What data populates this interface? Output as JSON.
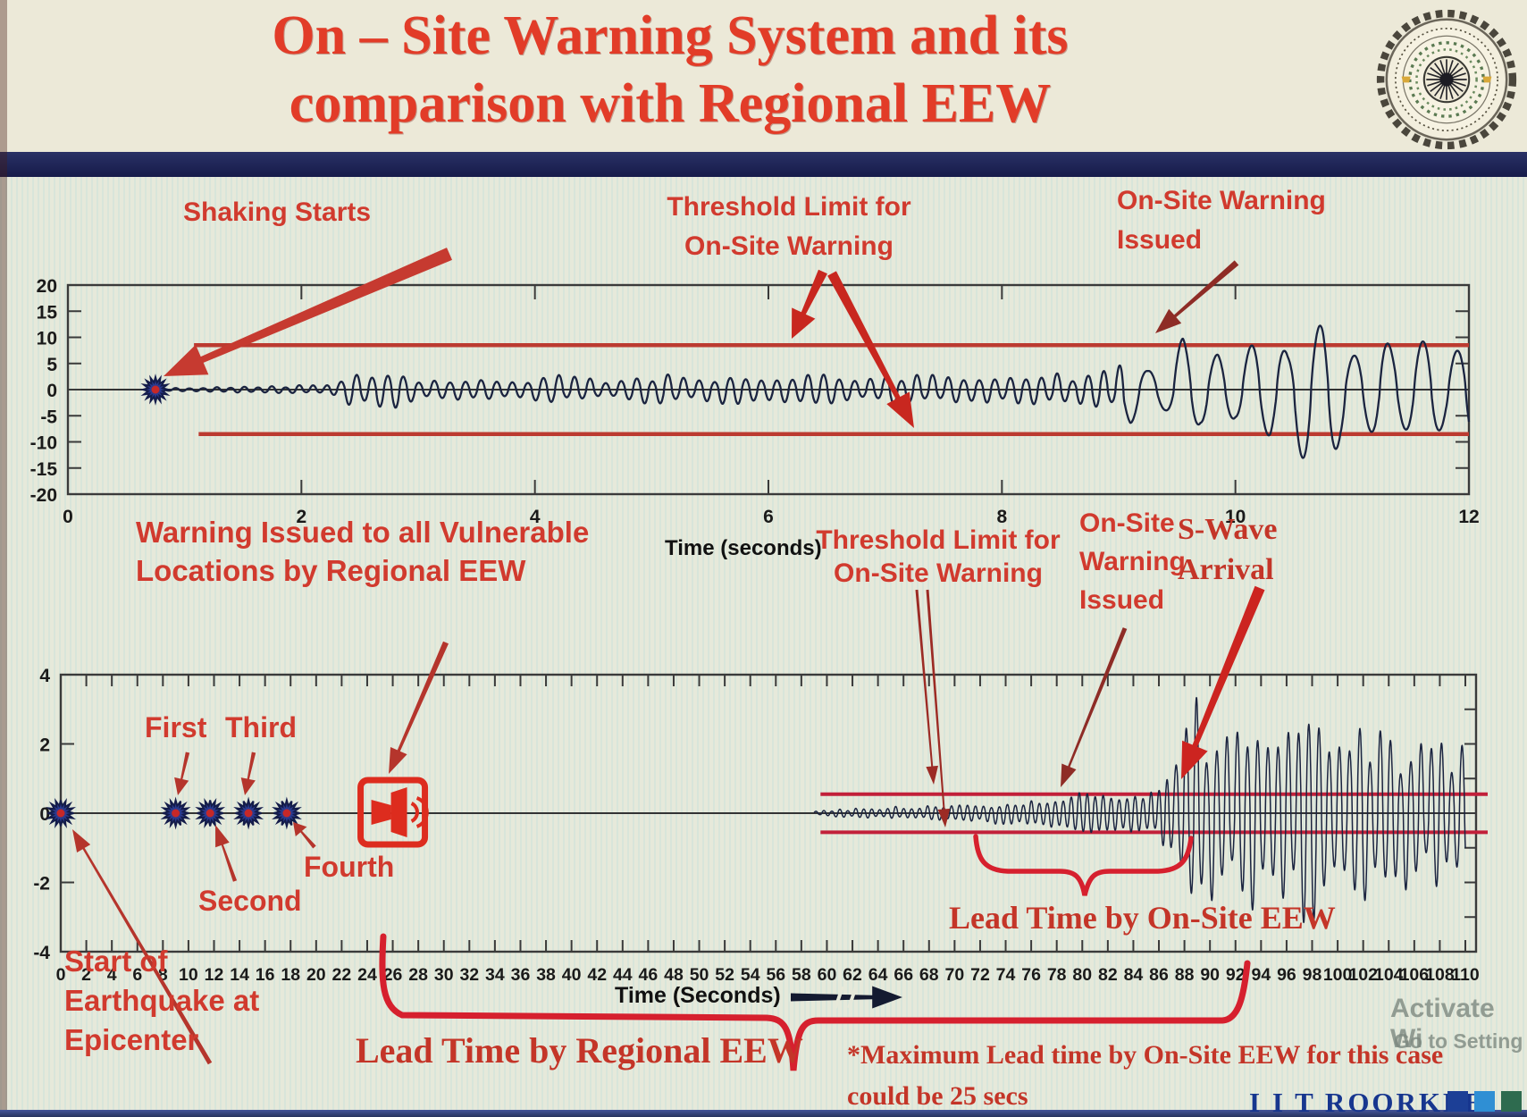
{
  "slide": {
    "title_line1": "On – Site Warning System and its",
    "title_line2": "comparison with Regional EEW",
    "footer_brand": "I I T ROORKEE",
    "watermark_line1": "Activate Wi",
    "watermark_line2": "Go to Setting",
    "logo_name": "IIT Roorkee emblem"
  },
  "colors": {
    "title_red": "#e23c28",
    "annotation_red": "#d13a2e",
    "arrow_bright_red": "#c8271f",
    "arrow_dark_red": "#8e2c26",
    "threshold_red": "#bc3a30",
    "bottom_threshold_red": "#c2203a",
    "waveform_navy": "#1b2440",
    "star_blue": "#2a3a8f",
    "star_center_red": "#c62828",
    "alarm_red": "#dd2c1e",
    "bracket_red": "#d6202e",
    "navy_bar": "#1d2256",
    "footer_navy": "#17368f",
    "footer_sq1": "#1c3f96",
    "footer_sq2": "#2f8fd4",
    "footer_sq3": "#2e6b4f"
  },
  "chart_data": [
    {
      "type": "line",
      "id": "onsite-warning-seismogram",
      "xlabel": "Time (seconds)",
      "xlim": [
        0,
        12
      ],
      "ylim": [
        -20,
        20
      ],
      "xticks": [
        0,
        2,
        4,
        6,
        8,
        10,
        12
      ],
      "yticks": [
        20,
        15,
        10,
        5,
        0,
        -5,
        -10,
        -15,
        -20
      ],
      "grid": false,
      "legend": "none",
      "threshold_upper": 8.5,
      "threshold_lower": -8.5,
      "threshold_start_t": 1.1,
      "shaking_start_marker_t": 0.75,
      "first_threshold_crossing_t": 9.1,
      "envelope": [
        [
          0.78,
          0.25
        ],
        [
          1.1,
          0.4
        ],
        [
          1.5,
          0.6
        ],
        [
          1.9,
          0.85
        ],
        [
          2.2,
          1.1
        ],
        [
          2.4,
          3.2
        ],
        [
          2.55,
          4.2
        ],
        [
          2.7,
          3.4
        ],
        [
          2.85,
          4.0
        ],
        [
          3.0,
          2.6
        ],
        [
          3.2,
          2.0
        ],
        [
          3.4,
          2.5
        ],
        [
          3.6,
          1.9
        ],
        [
          3.9,
          2.3
        ],
        [
          4.2,
          2.9
        ],
        [
          4.5,
          2.1
        ],
        [
          4.8,
          2.5
        ],
        [
          5.1,
          3.1
        ],
        [
          5.4,
          2.3
        ],
        [
          5.7,
          2.9
        ],
        [
          6.0,
          2.5
        ],
        [
          6.3,
          3.1
        ],
        [
          6.6,
          2.7
        ],
        [
          6.9,
          2.4
        ],
        [
          7.2,
          3.2
        ],
        [
          7.5,
          2.7
        ],
        [
          7.8,
          3.1
        ],
        [
          8.1,
          2.7
        ],
        [
          8.4,
          3.4
        ],
        [
          8.7,
          3.1
        ],
        [
          8.95,
          4.0
        ],
        [
          9.1,
          8.6
        ],
        [
          9.25,
          6.0
        ],
        [
          9.4,
          7.5
        ],
        [
          9.55,
          11.5
        ],
        [
          9.7,
          7.5
        ],
        [
          9.85,
          10.5
        ],
        [
          10.0,
          8.5
        ],
        [
          10.15,
          13.0
        ],
        [
          10.3,
          17.5
        ],
        [
          10.45,
          11.0
        ],
        [
          10.6,
          13.5
        ],
        [
          10.75,
          16.0
        ],
        [
          10.9,
          10.0
        ],
        [
          11.05,
          11.5
        ],
        [
          11.2,
          14.5
        ],
        [
          11.35,
          10.0
        ],
        [
          11.5,
          12.5
        ],
        [
          11.65,
          13.5
        ],
        [
          11.8,
          9.5
        ],
        [
          12.0,
          11.5
        ]
      ],
      "freq_cycles_per_unit": [
        [
          0,
          2.3,
          8.5
        ],
        [
          2.3,
          9.05,
          7.5
        ],
        [
          9.05,
          12,
          3.4
        ]
      ],
      "annotations": {
        "shaking_starts": "Shaking Starts",
        "threshold_line1": "Threshold Limit for",
        "threshold_line2": "On-Site Warning",
        "issued_line1": "On-Site Warning",
        "issued_line2": "Issued"
      }
    },
    {
      "type": "line",
      "id": "regional-vs-onsite-seismogram",
      "xlabel": "Time (Seconds)",
      "xlim": [
        0,
        110
      ],
      "ylim": [
        -4,
        4
      ],
      "xticks": [
        0,
        2,
        4,
        6,
        8,
        10,
        12,
        14,
        16,
        18,
        20,
        22,
        24,
        26,
        28,
        30,
        32,
        34,
        36,
        38,
        40,
        42,
        44,
        46,
        48,
        50,
        52,
        54,
        56,
        58,
        60,
        62,
        64,
        66,
        68,
        70,
        72,
        74,
        76,
        78,
        80,
        82,
        84,
        86,
        88,
        90,
        92,
        94,
        96,
        98,
        100,
        102,
        104,
        106,
        108,
        110
      ],
      "yticks": [
        4,
        2,
        0,
        -2,
        -4
      ],
      "grid": false,
      "legend": "none",
      "threshold_upper": 0.55,
      "threshold_lower": -0.55,
      "threshold_start_t": 59.5,
      "p_detection_markers": [
        {
          "t": 0,
          "label": "Start of Earthquake at Epicenter"
        },
        {
          "t": 9,
          "label": "First"
        },
        {
          "t": 11.7,
          "label": "Second"
        },
        {
          "t": 14.7,
          "label": "Third"
        },
        {
          "t": 17.7,
          "label": "Fourth"
        }
      ],
      "regional_warning_issued_t": 26,
      "onsite_warning_issued_t": 80,
      "s_wave_arrival_t": 88,
      "lead_time_regional_span_t": [
        24,
        93
      ],
      "lead_time_onsite_span_t": [
        72,
        88
      ],
      "envelope": [
        [
          59,
          0.07
        ],
        [
          61,
          0.12
        ],
        [
          63,
          0.16
        ],
        [
          65,
          0.19
        ],
        [
          67,
          0.22
        ],
        [
          69,
          0.25
        ],
        [
          71,
          0.28
        ],
        [
          73,
          0.32
        ],
        [
          75,
          0.35
        ],
        [
          77,
          0.42
        ],
        [
          79,
          0.55
        ],
        [
          80.5,
          0.75
        ],
        [
          82,
          0.6
        ],
        [
          83.5,
          0.8
        ],
        [
          85,
          0.65
        ],
        [
          86,
          0.9
        ],
        [
          87,
          1.3
        ],
        [
          88,
          2.6
        ],
        [
          89,
          3.4
        ],
        [
          90,
          2.7
        ],
        [
          91,
          3.5
        ],
        [
          92,
          2.4
        ],
        [
          93,
          3.6
        ],
        [
          94,
          2.9
        ],
        [
          95,
          3.3
        ],
        [
          96,
          2.5
        ],
        [
          97,
          3.1
        ],
        [
          98,
          3.5
        ],
        [
          99,
          2.7
        ],
        [
          100,
          3.2
        ],
        [
          101,
          2.4
        ],
        [
          102,
          2.9
        ],
        [
          103,
          2.6
        ],
        [
          104,
          2.8
        ],
        [
          105,
          2.2
        ],
        [
          106,
          2.5
        ],
        [
          107,
          2.0
        ],
        [
          108,
          2.3
        ],
        [
          109,
          1.8
        ],
        [
          110,
          2.1
        ]
      ],
      "freq_cycles_per_unit": [
        [
          59,
          87,
          1.6
        ],
        [
          87,
          110,
          1.25
        ]
      ],
      "annotations": {
        "warning_regional_line1": "Warning Issued to all Vulnerable",
        "warning_regional_line2": "Locations by Regional EEW",
        "first": "First",
        "second": "Second",
        "third": "Third",
        "fourth": "Fourth",
        "threshold_line1": "Threshold Limit for",
        "threshold_line2": "On-Site Warning",
        "issued_line1": "On-Site",
        "issued_line2": "Warning",
        "issued_line3": "Issued",
        "swave_line1": "S-Wave",
        "swave_line2": "Arrival",
        "lead_onsite": "Lead Time by On-Site EEW",
        "lead_regional": "Lead Time by Regional EEW",
        "max_note_line1": "*Maximum Lead time by On-Site EEW for this case",
        "max_note_line2": "could be 25 secs",
        "start_line1": "Start of",
        "start_line2": "Earthquake at",
        "start_line3": "Epicenter"
      }
    }
  ]
}
